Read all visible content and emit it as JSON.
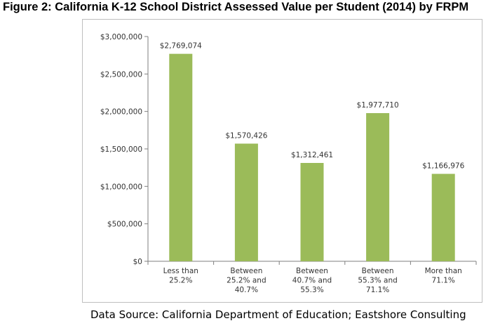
{
  "figure_title": "Figure 2: California K-12 School District Assessed Value per Student (2014) by FRPM",
  "source_note": "Data Source: California Department of Education; Eastshore Consulting",
  "chart_data": {
    "type": "bar",
    "title": "",
    "xlabel": "",
    "ylabel": "",
    "categories": [
      [
        "Less than",
        "25.2%"
      ],
      [
        "Between",
        "25.2% and",
        "40.7%"
      ],
      [
        "Between",
        "40.7% and",
        "55.3%"
      ],
      [
        "Between",
        "55.3% and",
        "71.1%"
      ],
      [
        "More than",
        "71.1%"
      ]
    ],
    "values": [
      2769074,
      1570426,
      1312461,
      1977710,
      1166976
    ],
    "data_labels": [
      "$2,769,074",
      "$1,570,426",
      "$1,312,461",
      "$1,977,710",
      "$1,166,976"
    ],
    "ylim": [
      0,
      3000000
    ],
    "y_ticks": [
      0,
      500000,
      1000000,
      1500000,
      2000000,
      2500000,
      3000000
    ],
    "y_tick_labels": [
      "$0",
      "$500,000",
      "$1,000,000",
      "$1,500,000",
      "$2,000,000",
      "$2,500,000",
      "$3,000,000"
    ],
    "grid": false,
    "legend": "none",
    "bar_color": "#9bbb59",
    "axis_color": "#7f7f7f"
  }
}
